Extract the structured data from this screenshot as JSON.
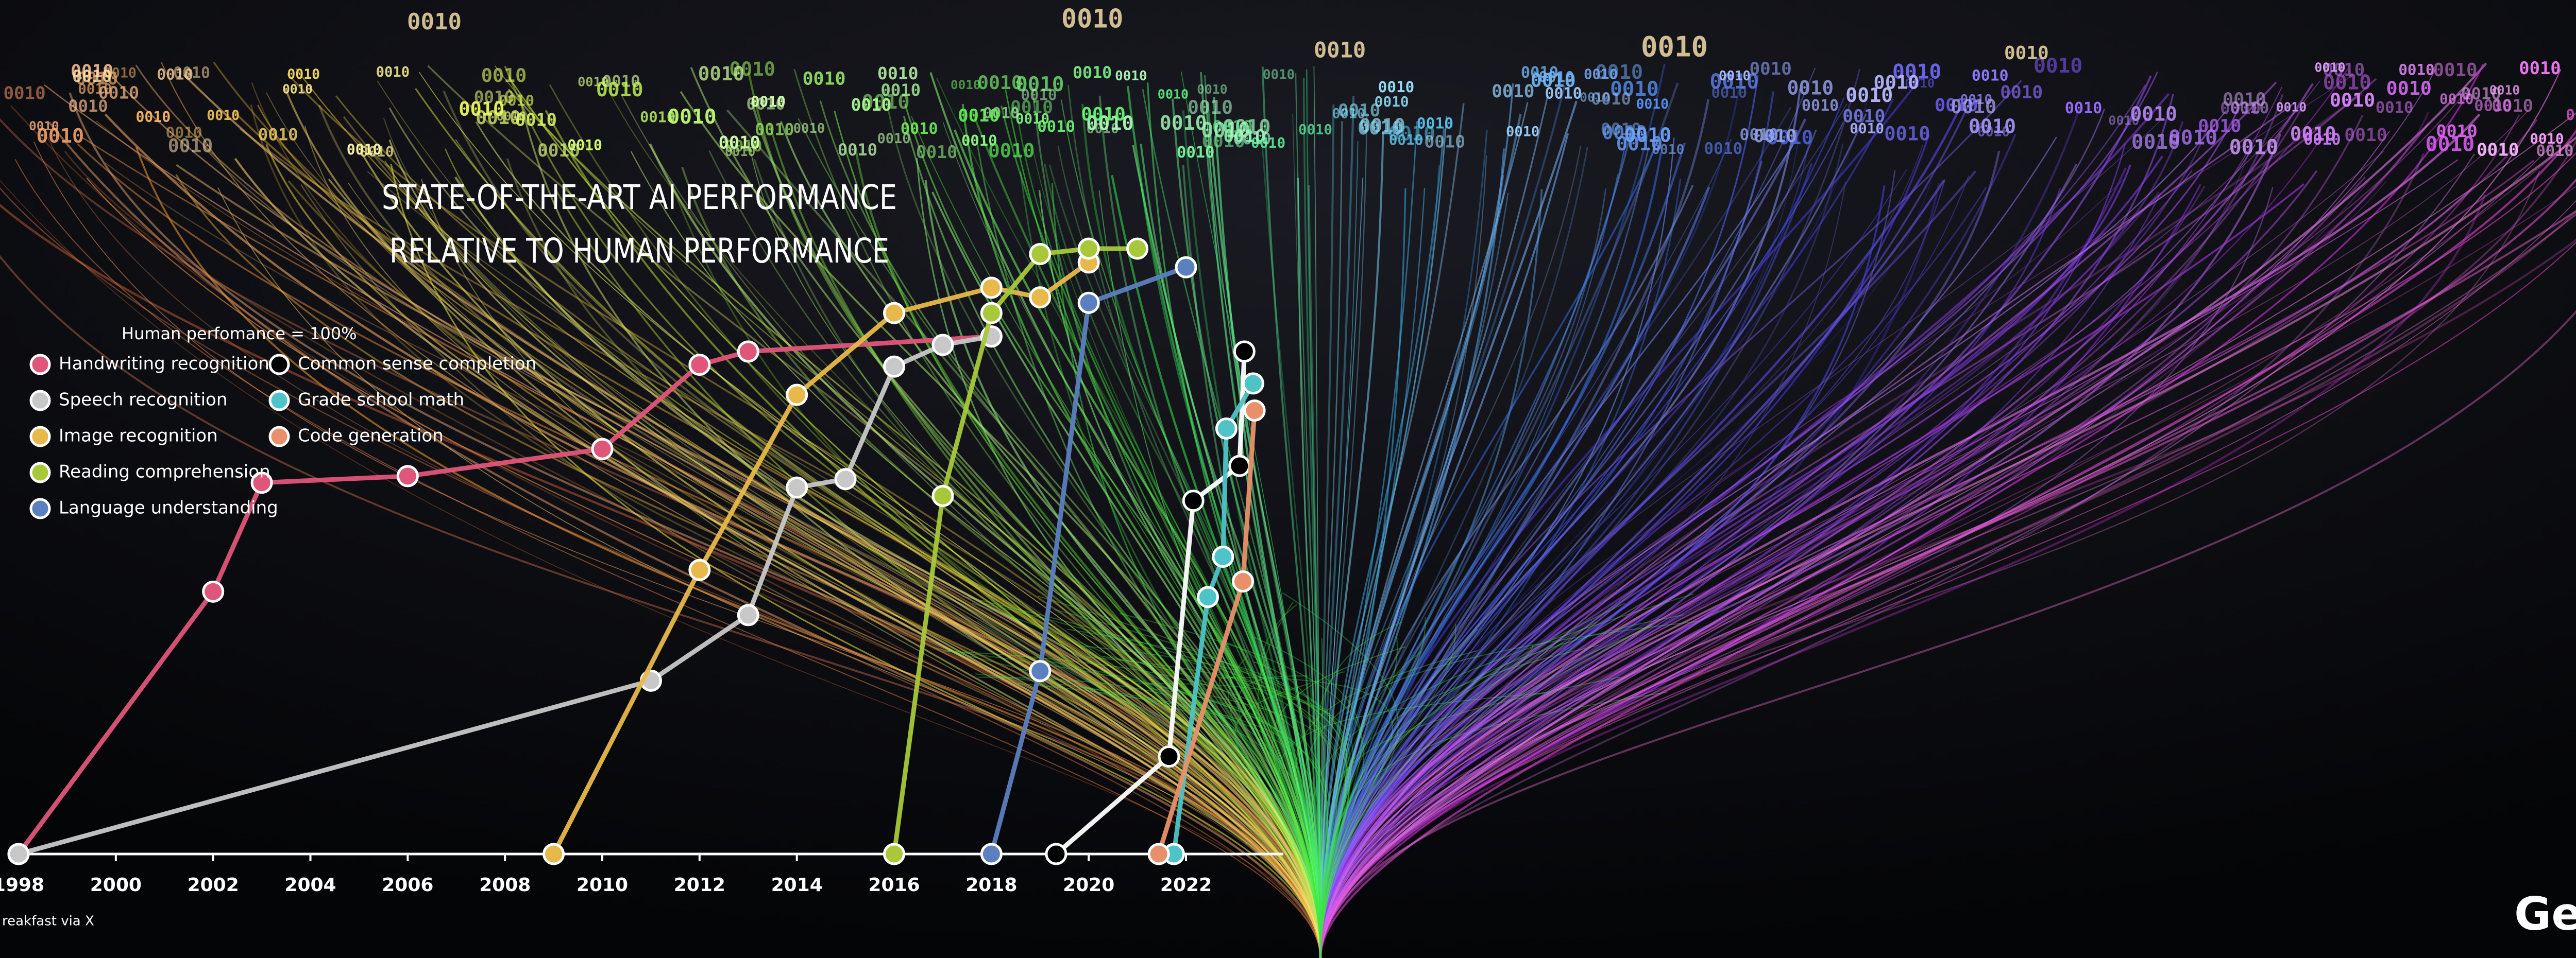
{
  "chart_data": {
    "type": "line",
    "title": [
      "STATE-OF-THE-ART AI PERFORMANCE",
      "RELATIVE TO HUMAN PERFORMANCE"
    ],
    "annotation": "Human perfomance = 100%",
    "source": "reakfast via X",
    "logo": "Gerd",
    "decor_text": "0010",
    "xlim": [
      1998,
      2024
    ],
    "xticks": [
      1998,
      2000,
      2002,
      2004,
      2006,
      2008,
      2010,
      2012,
      2014,
      2016,
      2018,
      2020,
      2022
    ],
    "ylim": [
      0,
      100
    ],
    "series": [
      {
        "name": "Handwriting recognition",
        "color": "#e0557a",
        "marker_fill": "#e0557a",
        "x": [
          1998,
          2002,
          2003,
          2006,
          2010,
          2012,
          2013,
          2018
        ],
        "values": [
          0,
          43.6,
          61.7,
          62.8,
          67.3,
          81.3,
          83.5,
          86
        ]
      },
      {
        "name": "Speech recognition",
        "color": "#c8c8c8",
        "marker_fill": "#c8c8c8",
        "x": [
          1998,
          2011,
          2013,
          2014,
          2015,
          2016,
          2017,
          2018
        ],
        "values": [
          0,
          28.8,
          39.7,
          60.9,
          62.3,
          81,
          84.6,
          86
        ]
      },
      {
        "name": "Image recognition",
        "color": "#e8b84a",
        "marker_fill": "#e8b84a",
        "x": [
          2009,
          2012,
          2014,
          2016,
          2018,
          2019,
          2020
        ],
        "values": [
          0,
          47.2,
          76.3,
          89.9,
          94.1,
          92.5,
          98.3
        ]
      },
      {
        "name": "Reading comprehension",
        "color": "#a8c83a",
        "marker_fill": "#a8c83a",
        "x": [
          2016,
          2017,
          2018,
          2019,
          2020,
          2021
        ],
        "values": [
          0,
          59.5,
          89.9,
          99.7,
          100.6,
          100.6
        ]
      },
      {
        "name": "Language understanding",
        "color": "#5b7fbf",
        "marker_fill": "#5b7fbf",
        "x": [
          2018,
          2019,
          2020,
          2022
        ],
        "values": [
          0,
          30.4,
          91.6,
          97.5
        ]
      },
      {
        "name": "Common sense completion",
        "color": "#ffffff",
        "marker_fill": "#000000",
        "x": [
          2019.33,
          2021.65,
          2022.15,
          2023.1,
          2023.2
        ],
        "values": [
          0,
          16.2,
          58.7,
          64.5,
          83.5
        ]
      },
      {
        "name": "Grade school math",
        "color": "#4ec3c8",
        "marker_fill": "#4ec3c8",
        "x": [
          2021.75,
          2022.45,
          2022.76,
          2022.83,
          2023.38
        ],
        "values": [
          0,
          42.7,
          49.4,
          70.7,
          78.2
        ]
      },
      {
        "name": "Code generation",
        "color": "#e8906a",
        "marker_fill": "#e8906a",
        "x": [
          2021.44,
          2023.17,
          2023.41
        ],
        "values": [
          0,
          45.3,
          73.7
        ]
      }
    ]
  }
}
